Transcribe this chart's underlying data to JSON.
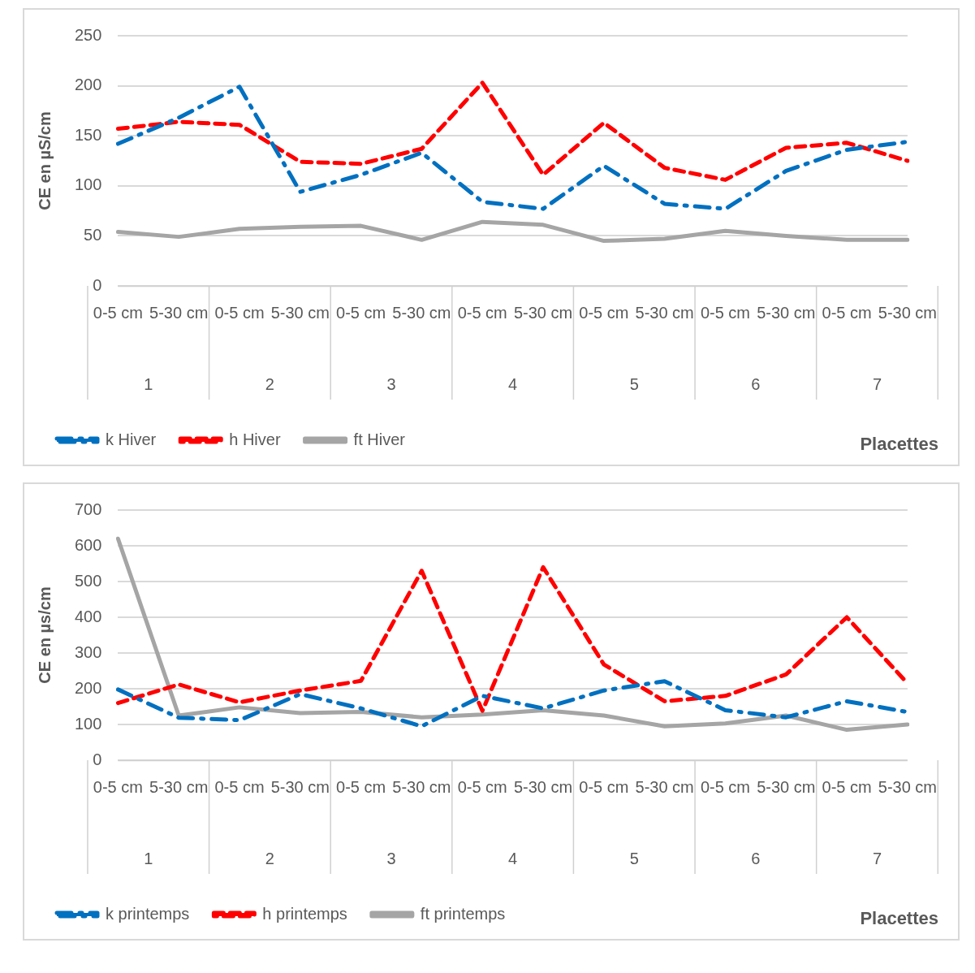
{
  "chart_data": [
    {
      "type": "line",
      "ylabel": "CE en µS/cm",
      "xlabel": "Placettes",
      "categories": [
        "0-5 cm",
        "5-30 cm",
        "0-5 cm",
        "5-30 cm",
        "0-5 cm",
        "5-30 cm",
        "0-5 cm",
        "5-30 cm",
        "0-5 cm",
        "5-30 cm",
        "0-5 cm",
        "5-30 cm",
        "0-5 cm",
        "5-30 cm"
      ],
      "annotations": [
        "1",
        "2",
        "3",
        "4",
        "5",
        "6",
        "7"
      ],
      "ylim": [
        0,
        250
      ],
      "yticks": [
        0,
        50,
        100,
        150,
        200,
        250
      ],
      "grid": "y",
      "legend": "bottom",
      "marker": "none",
      "series": [
        {
          "name": "k Hiver",
          "color": "#0070c0",
          "line_style": "dashdot",
          "values": [
            142,
            168,
            199,
            94,
            111,
            133,
            84,
            77,
            120,
            82,
            77,
            115,
            136,
            144
          ]
        },
        {
          "name": "h Hiver",
          "color": "#ff0000",
          "line_style": "dashed",
          "values": [
            157,
            164,
            161,
            124,
            122,
            137,
            203,
            111,
            163,
            118,
            106,
            138,
            143,
            125
          ]
        },
        {
          "name": "ft Hiver",
          "color": "#a5a5a5",
          "line_style": "solid",
          "values": [
            54,
            49,
            57,
            59,
            60,
            46,
            64,
            61,
            45,
            47,
            55,
            50,
            46,
            46
          ]
        }
      ]
    },
    {
      "type": "line",
      "ylabel": "CE en µs/cm",
      "xlabel": "Placettes",
      "categories": [
        "0-5 cm",
        "5-30 cm",
        "0-5 cm",
        "5-30 cm",
        "0-5 cm",
        "5-30 cm",
        "0-5 cm",
        "5-30 cm",
        "0-5 cm",
        "5-30 cm",
        "0-5 cm",
        "5-30 cm",
        "0-5 cm",
        "5-30 cm"
      ],
      "annotations": [
        "1",
        "2",
        "3",
        "4",
        "5",
        "6",
        "7"
      ],
      "ylim": [
        0,
        700
      ],
      "yticks": [
        0,
        100,
        200,
        300,
        400,
        500,
        600,
        700
      ],
      "grid": "y",
      "legend": "bottom",
      "marker": "none",
      "series": [
        {
          "name": "k printemps",
          "color": "#0070c0",
          "line_style": "dashdot",
          "values": [
            198,
            119,
            112,
            185,
            145,
            95,
            180,
            145,
            195,
            221,
            140,
            120,
            165,
            135
          ]
        },
        {
          "name": "h printemps",
          "color": "#ff0000",
          "line_style": "dashed",
          "values": [
            160,
            212,
            162,
            195,
            222,
            530,
            138,
            540,
            268,
            165,
            180,
            240,
            400,
            215
          ]
        },
        {
          "name": "ft printemps",
          "color": "#a5a5a5",
          "line_style": "solid",
          "values": [
            620,
            125,
            148,
            132,
            135,
            120,
            128,
            140,
            125,
            95,
            103,
            125,
            85,
            100
          ]
        }
      ]
    }
  ]
}
